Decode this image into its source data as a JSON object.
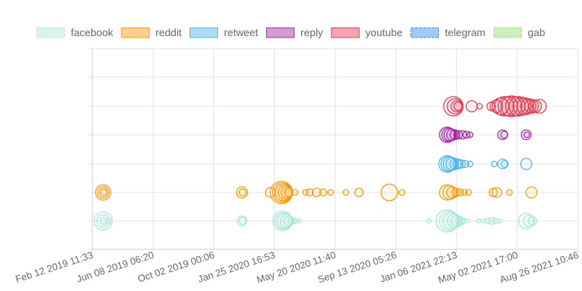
{
  "chart_data": {
    "type": "scatter",
    "subtype": "bubble-timeline",
    "title": "",
    "xlabel": "",
    "ylabel": "",
    "grid": true,
    "legend_position": "top",
    "x_axis": {
      "type": "time",
      "ticks": [
        "Feb 12 2019 11:33",
        "Jun 08 2019 06:20",
        "Oct 02 2019 00:06",
        "Jan 25 2020 16:53",
        "May 20 2020 11:40",
        "Sep 13 2020 05:26",
        "Jan 06 2021 22:13",
        "May 02 2021 17:00",
        "Aug 26 2021 10:46"
      ]
    },
    "series": [
      {
        "name": "facebook",
        "color": "#a8e6d8",
        "points": [
          {
            "x": "2019-03-05",
            "r": 13
          },
          {
            "x": "2019-03-05",
            "r": 9
          },
          {
            "x": "2019-03-06",
            "r": 5
          },
          {
            "x": "2019-03-15",
            "r": 4
          },
          {
            "x": "2019-11-25",
            "r": 7
          },
          {
            "x": "2019-11-26",
            "r": 5
          },
          {
            "x": "2020-02-10",
            "r": 14
          },
          {
            "x": "2020-02-12",
            "r": 12
          },
          {
            "x": "2020-02-15",
            "r": 11
          },
          {
            "x": "2020-02-18",
            "r": 9
          },
          {
            "x": "2020-02-22",
            "r": 7
          },
          {
            "x": "2020-02-28",
            "r": 5
          },
          {
            "x": "2020-03-05",
            "r": 4
          },
          {
            "x": "2020-03-12",
            "r": 3
          },
          {
            "x": "2020-11-15",
            "r": 3
          },
          {
            "x": "2020-12-20",
            "r": 16
          },
          {
            "x": "2020-12-24",
            "r": 14
          },
          {
            "x": "2020-12-28",
            "r": 12
          },
          {
            "x": "2021-01-03",
            "r": 10
          },
          {
            "x": "2021-01-08",
            "r": 8
          },
          {
            "x": "2021-01-14",
            "r": 6
          },
          {
            "x": "2021-01-20",
            "r": 4
          },
          {
            "x": "2021-01-28",
            "r": 3
          },
          {
            "x": "2021-02-18",
            "r": 3
          },
          {
            "x": "2021-02-28",
            "r": 3
          },
          {
            "x": "2021-03-08",
            "r": 4
          },
          {
            "x": "2021-03-15",
            "r": 5
          },
          {
            "x": "2021-03-22",
            "r": 4
          },
          {
            "x": "2021-03-30",
            "r": 3
          },
          {
            "x": "2021-05-20",
            "r": 11
          },
          {
            "x": "2021-05-25",
            "r": 8
          },
          {
            "x": "2021-06-01",
            "r": 6
          }
        ]
      },
      {
        "name": "reddit",
        "color": "#ff9500",
        "points": [
          {
            "x": "2019-03-05",
            "r": 11
          },
          {
            "x": "2019-03-05",
            "r": 8
          },
          {
            "x": "2019-03-06",
            "r": 5
          },
          {
            "x": "2019-11-25",
            "r": 8
          },
          {
            "x": "2019-11-26",
            "r": 5
          },
          {
            "x": "2020-01-18",
            "r": 7
          },
          {
            "x": "2020-02-08",
            "r": 16
          },
          {
            "x": "2020-02-10",
            "r": 14
          },
          {
            "x": "2020-02-12",
            "r": 12
          },
          {
            "x": "2020-02-15",
            "r": 10
          },
          {
            "x": "2020-02-18",
            "r": 8
          },
          {
            "x": "2020-02-22",
            "r": 6
          },
          {
            "x": "2020-03-05",
            "r": 4
          },
          {
            "x": "2020-03-25",
            "r": 4
          },
          {
            "x": "2020-04-02",
            "r": 5
          },
          {
            "x": "2020-04-15",
            "r": 6
          },
          {
            "x": "2020-04-28",
            "r": 5
          },
          {
            "x": "2020-05-12",
            "r": 4
          },
          {
            "x": "2020-06-10",
            "r": 4
          },
          {
            "x": "2020-07-05",
            "r": 6
          },
          {
            "x": "2020-09-01",
            "r": 12
          },
          {
            "x": "2020-09-25",
            "r": 4
          },
          {
            "x": "2020-12-20",
            "r": 11
          },
          {
            "x": "2020-12-25",
            "r": 10
          },
          {
            "x": "2020-12-30",
            "r": 8
          },
          {
            "x": "2021-01-06",
            "r": 6
          },
          {
            "x": "2021-01-14",
            "r": 5
          },
          {
            "x": "2021-01-22",
            "r": 4
          },
          {
            "x": "2021-01-30",
            "r": 4
          },
          {
            "x": "2021-03-18",
            "r": 6
          },
          {
            "x": "2021-03-25",
            "r": 7
          },
          {
            "x": "2021-04-18",
            "r": 4
          },
          {
            "x": "2021-05-30",
            "r": 8
          }
        ]
      },
      {
        "name": "retweet",
        "color": "#4ab4e6",
        "points": [
          {
            "x": "2020-12-20",
            "r": 12
          },
          {
            "x": "2020-12-23",
            "r": 11
          },
          {
            "x": "2020-12-26",
            "r": 10
          },
          {
            "x": "2020-12-30",
            "r": 9
          },
          {
            "x": "2021-01-05",
            "r": 8
          },
          {
            "x": "2021-01-10",
            "r": 7
          },
          {
            "x": "2021-01-16",
            "r": 6
          },
          {
            "x": "2021-01-24",
            "r": 5
          },
          {
            "x": "2021-02-02",
            "r": 4
          },
          {
            "x": "2021-03-20",
            "r": 4
          },
          {
            "x": "2021-04-05",
            "r": 7
          },
          {
            "x": "2021-04-09",
            "r": 5
          },
          {
            "x": "2021-05-20",
            "r": 8
          }
        ]
      },
      {
        "name": "reply",
        "color": "#a020a0",
        "points": [
          {
            "x": "2020-12-20",
            "r": 11
          },
          {
            "x": "2020-12-23",
            "r": 10
          },
          {
            "x": "2020-12-26",
            "r": 9
          },
          {
            "x": "2020-12-30",
            "r": 8
          },
          {
            "x": "2021-01-04",
            "r": 7
          },
          {
            "x": "2021-01-10",
            "r": 6
          },
          {
            "x": "2021-01-18",
            "r": 6
          },
          {
            "x": "2021-01-26",
            "r": 5
          },
          {
            "x": "2021-02-02",
            "r": 4
          },
          {
            "x": "2021-04-05",
            "r": 7
          },
          {
            "x": "2021-04-08",
            "r": 5
          },
          {
            "x": "2021-05-20",
            "r": 7
          },
          {
            "x": "2021-05-21",
            "r": 4
          }
        ]
      },
      {
        "name": "youtube",
        "color": "#e8344e",
        "points": [
          {
            "x": "2021-01-01",
            "r": 14
          },
          {
            "x": "2021-01-04",
            "r": 11
          },
          {
            "x": "2021-01-07",
            "r": 8
          },
          {
            "x": "2021-01-10",
            "r": 6
          },
          {
            "x": "2021-02-05",
            "r": 8
          },
          {
            "x": "2021-02-20",
            "r": 4
          },
          {
            "x": "2021-03-14",
            "r": 6
          },
          {
            "x": "2021-03-24",
            "r": 9
          },
          {
            "x": "2021-04-01",
            "r": 12
          },
          {
            "x": "2021-04-08",
            "r": 14
          },
          {
            "x": "2021-04-15",
            "r": 14
          },
          {
            "x": "2021-04-22",
            "r": 15
          },
          {
            "x": "2021-04-29",
            "r": 14
          },
          {
            "x": "2021-05-06",
            "r": 14
          },
          {
            "x": "2021-05-12",
            "r": 13
          },
          {
            "x": "2021-05-18",
            "r": 12
          },
          {
            "x": "2021-05-24",
            "r": 11
          },
          {
            "x": "2021-05-30",
            "r": 10
          },
          {
            "x": "2021-06-06",
            "r": 9
          },
          {
            "x": "2021-06-14",
            "r": 10
          }
        ]
      },
      {
        "name": "telegram",
        "color": "#2a8ae0",
        "points": []
      },
      {
        "name": "gab",
        "color": "#8fdc6a",
        "points": []
      }
    ]
  }
}
